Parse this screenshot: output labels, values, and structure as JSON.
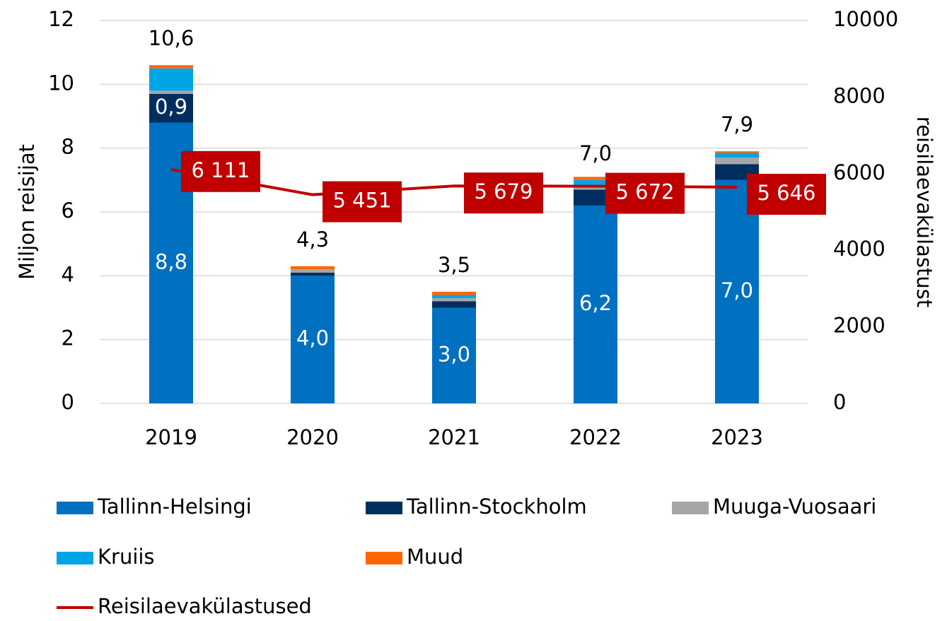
{
  "chart_data": {
    "type": "bar",
    "stacked": true,
    "ylabel": "Miljon reisijat",
    "y2label": "reisilaevakülastust",
    "categories": [
      "2019",
      "2020",
      "2021",
      "2022",
      "2023"
    ],
    "ylim": [
      0,
      12
    ],
    "yticks": [
      0,
      2,
      4,
      6,
      8,
      10,
      12
    ],
    "y2lim": [
      0,
      10000
    ],
    "y2ticks": [
      0,
      2000,
      4000,
      6000,
      8000,
      10000
    ],
    "series": [
      {
        "name": "Tallinn-Helsingi",
        "color": "#0070c0",
        "values": [
          8.8,
          4.0,
          3.0,
          6.2,
          7.0
        ],
        "value_labels": [
          "8,8",
          "4,0",
          "3,0",
          "6,2",
          "7,0"
        ]
      },
      {
        "name": "Tallinn-Stockholm",
        "color": "#002f5f",
        "values": [
          0.9,
          0.1,
          0.2,
          0.5,
          0.5
        ],
        "value_labels": [
          "0,9",
          null,
          null,
          null,
          null
        ]
      },
      {
        "name": "Muuga-Vuosaari",
        "color": "#a6a6a6",
        "values": [
          0.1,
          0.1,
          0.1,
          0.1,
          0.2
        ]
      },
      {
        "name": "Kruiis",
        "color": "#00a5e6",
        "values": [
          0.7,
          0.0,
          0.1,
          0.2,
          0.15
        ]
      },
      {
        "name": "Muud",
        "color": "#ff6600",
        "values": [
          0.1,
          0.1,
          0.1,
          0.1,
          0.05
        ]
      },
      {
        "name": "Reisilaevakülastused",
        "type": "line",
        "axis": "y2",
        "color": "#c00000",
        "values": [
          6111,
          5451,
          5679,
          5672,
          5646
        ],
        "value_labels": [
          "6 111",
          "5 451",
          "5 679",
          "5 672",
          "5 646"
        ]
      }
    ],
    "totals": [
      10.6,
      4.3,
      3.5,
      7.0,
      7.9
    ],
    "total_labels": [
      "10,6",
      "4,3",
      "3,5",
      "7,0",
      "7,9"
    ]
  }
}
